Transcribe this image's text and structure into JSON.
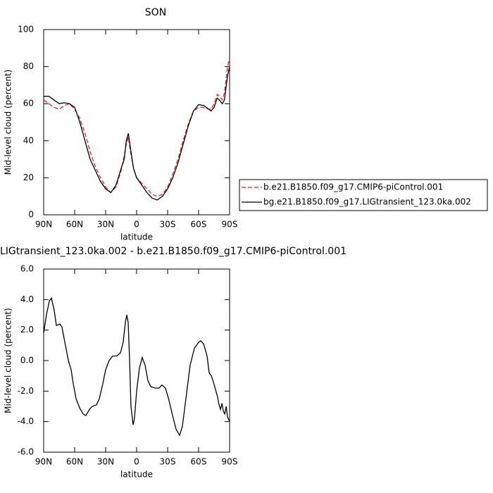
{
  "chart_data": [
    {
      "type": "line",
      "title": "SON",
      "xlabel": "latitude",
      "ylabel": "Mid-level cloud (percent)",
      "xlim": [
        90,
        -90
      ],
      "ylim": [
        0,
        100
      ],
      "xticks": [
        {
          "value": 90,
          "label": "90N"
        },
        {
          "value": 60,
          "label": "60N"
        },
        {
          "value": 30,
          "label": "30N"
        },
        0,
        {
          "value": -30,
          "label": "30S"
        },
        {
          "value": -60,
          "label": "60S"
        },
        {
          "value": -90,
          "label": "90S"
        }
      ],
      "yticks": [
        0,
        20,
        40,
        60,
        80,
        100
      ],
      "x": [
        90,
        85,
        80,
        75,
        70,
        65,
        60,
        55,
        50,
        45,
        40,
        35,
        30,
        25,
        20,
        15,
        12,
        10,
        8,
        6,
        3,
        0,
        -5,
        -10,
        -15,
        -20,
        -25,
        -30,
        -35,
        -40,
        -45,
        -50,
        -55,
        -60,
        -65,
        -70,
        -72,
        -75,
        -78,
        -80,
        -83,
        -85,
        -88,
        -90
      ],
      "series": [
        {
          "name": "b.e21.B1850.f09_g17.CMIP6-piControl.001",
          "color": "#e8212a",
          "dash": true,
          "values": [
            62,
            60,
            58,
            57,
            59,
            60,
            57,
            52,
            44,
            34,
            26,
            20,
            15,
            12,
            15,
            24,
            32,
            38,
            42,
            34,
            25,
            20,
            17,
            14,
            11,
            10,
            11,
            15,
            22,
            30,
            40,
            49,
            56,
            58,
            58,
            57,
            57,
            60,
            65,
            64,
            62,
            66,
            80,
            85
          ]
        },
        {
          "name": "bg.e21.B1850.f09_g17.LIGtransient_123.0ka.002",
          "color": "#000000",
          "dash": false,
          "values": [
            64,
            64,
            62,
            60,
            60.5,
            60,
            58,
            50,
            40,
            30,
            24,
            18,
            14,
            12,
            16,
            25,
            30,
            40,
            44,
            36,
            25,
            20,
            16,
            12,
            9,
            8,
            10,
            14,
            20,
            28,
            38,
            48,
            56,
            59.5,
            59,
            57,
            56,
            58,
            63,
            62,
            60,
            62,
            75,
            80
          ]
        }
      ]
    },
    {
      "type": "line",
      "title": "LIGtransient_123.0ka.002 - b.e21.B1850.f09_g17.CMIP6-piControl.001",
      "xlabel": "latitude",
      "ylabel": "Mid-level cloud (percent)",
      "xlim": [
        90,
        -90
      ],
      "ylim": [
        -6,
        6
      ],
      "xticks": [
        {
          "value": 90,
          "label": "90N"
        },
        {
          "value": 60,
          "label": "60N"
        },
        {
          "value": 30,
          "label": "30N"
        },
        0,
        {
          "value": -30,
          "label": "30S"
        },
        {
          "value": -60,
          "label": "60S"
        },
        {
          "value": -90,
          "label": "90S"
        }
      ],
      "yticks": [
        {
          "value": -6,
          "label": "-6.0"
        },
        {
          "value": -4,
          "label": "-4.0"
        },
        {
          "value": -2,
          "label": "-2.0"
        },
        {
          "value": 0,
          "label": "0.0"
        },
        {
          "value": 2,
          "label": "2.0"
        },
        {
          "value": 4,
          "label": "4.0"
        },
        {
          "value": 6,
          "label": "6.0"
        }
      ],
      "x": [
        90,
        87.3,
        84.5,
        82.5,
        79.8,
        77.7,
        74.3,
        72.3,
        69.5,
        66.1,
        63.4,
        61.4,
        58.6,
        55.2,
        51.8,
        49.1,
        45.7,
        43,
        38.9,
        36.1,
        32.7,
        30,
        26.6,
        23.2,
        19.1,
        15.7,
        13,
        10.9,
        9.6,
        8.2,
        6.8,
        5.5,
        3.4,
        2.1,
        0,
        -2.7,
        -5.4,
        -8.2,
        -10.9,
        -13.6,
        -17.7,
        -21.8,
        -24.5,
        -27.9,
        -31.3,
        -34.8,
        -38.2,
        -41.6,
        -44.3,
        -47.7,
        -51.8,
        -55.9,
        -60,
        -62,
        -64.8,
        -68.2,
        -70.2,
        -72.3,
        -74.3,
        -76.4,
        -78.4,
        -79.8,
        -81.2,
        -82.6,
        -83.9,
        -85.3,
        -86.7,
        -88,
        -89.4,
        -90
      ],
      "series": [
        {
          "color": "#000000",
          "dash": false,
          "values": [
            1.8,
            3.0,
            3.9,
            4.1,
            3.3,
            2.3,
            2.4,
            2.2,
            1.2,
            0.0,
            -0.6,
            -1.5,
            -2.5,
            -3.1,
            -3.5,
            -3.6,
            -3.2,
            -3.0,
            -2.9,
            -2.5,
            -1.5,
            -0.6,
            0.0,
            0.3,
            0.3,
            0.5,
            1.2,
            2.5,
            3.0,
            2.5,
            0.0,
            -3.0,
            -4.2,
            -3.8,
            -2.0,
            -0.5,
            0.2,
            -0.3,
            -1.3,
            -1.7,
            -1.8,
            -1.8,
            -1.6,
            -1.8,
            -2.6,
            -3.6,
            -4.5,
            -4.9,
            -4.3,
            -2.5,
            -0.3,
            0.8,
            1.2,
            1.3,
            1.1,
            0.3,
            -0.8,
            -1.0,
            -1.4,
            -1.9,
            -2.4,
            -2.9,
            -3.2,
            -2.8,
            -3.3,
            -3.5,
            -3.0,
            -3.7,
            -3.9,
            -4.0
          ]
        }
      ]
    }
  ]
}
